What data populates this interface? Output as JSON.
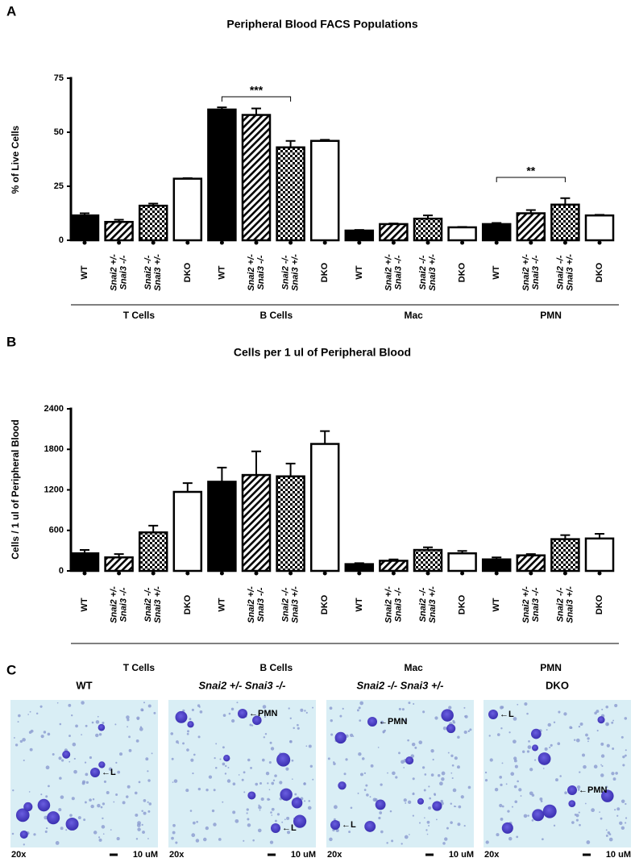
{
  "panel_labels": [
    "A",
    "B",
    "C"
  ],
  "chart_data": [
    {
      "type": "bar",
      "title": "Peripheral Blood FACS Populations",
      "y_label": "% of Live Cells",
      "categories": [
        "T Cells",
        "B Cells",
        "Mac",
        "PMN"
      ],
      "series": [
        {
          "name": "WT",
          "color": "#000000",
          "fill": "solid",
          "values": [
            11.5,
            60.5,
            4.5,
            7.5
          ],
          "errors": [
            1,
            1,
            0.3,
            0.5
          ]
        },
        {
          "name": "Snai2 +/- Snai3 -/-",
          "color": "#000000",
          "fill": "hatch",
          "values": [
            8.5,
            58,
            7.5,
            12.5
          ],
          "errors": [
            1,
            3,
            0.3,
            1.5
          ]
        },
        {
          "name": "Snai2 -/- Snai3 +/-",
          "color": "#000000",
          "fill": "checker",
          "values": [
            16,
            43,
            10,
            16.5
          ],
          "errors": [
            1,
            3,
            1.5,
            3
          ]
        },
        {
          "name": "DKO",
          "color": "#000000",
          "fill": "empty",
          "values": [
            28.5,
            46,
            6,
            11.5
          ],
          "errors": [
            0.3,
            0.5,
            0.2,
            0.3
          ]
        }
      ],
      "ylim": [
        0,
        75
      ],
      "yticks": [
        0,
        25,
        50,
        75
      ],
      "annotations": [
        {
          "text": "***"
        },
        {
          "text": "**"
        }
      ]
    },
    {
      "type": "bar",
      "title": "Cells per 1 ul of Peripheral Blood",
      "y_label": "Cells / 1 ul of Peripheral Blood",
      "categories": [
        "T Cells",
        "B Cells",
        "Mac",
        "PMN"
      ],
      "series": [
        {
          "name": "WT",
          "color": "#000000",
          "fill": "solid",
          "values": [
            260,
            1320,
            100,
            170
          ],
          "errors": [
            50,
            210,
            15,
            30
          ]
        },
        {
          "name": "Snai2 +/- Snai3 -/-",
          "color": "#000000",
          "fill": "hatch",
          "values": [
            200,
            1420,
            150,
            230
          ],
          "errors": [
            50,
            350,
            20,
            20
          ]
        },
        {
          "name": "Snai2 -/- Snai3 +/-",
          "color": "#000000",
          "fill": "checker",
          "values": [
            570,
            1400,
            310,
            470
          ],
          "errors": [
            100,
            190,
            40,
            60
          ]
        },
        {
          "name": "DKO",
          "color": "#000000",
          "fill": "empty",
          "values": [
            1170,
            1880,
            260,
            480
          ],
          "errors": [
            130,
            190,
            35,
            70
          ]
        }
      ],
      "ylim": [
        0,
        2400
      ],
      "yticks": [
        0,
        600,
        1200,
        1800,
        2400
      ],
      "annotations": []
    }
  ],
  "micrographs": {
    "magnification": "20x",
    "scale_bar": "10 uM",
    "panels": [
      {
        "title": "WT",
        "labels": [
          "←L"
        ]
      },
      {
        "title": "Snai2 +/- Snai3 -/-",
        "labels": [
          "←PMN",
          "←L"
        ]
      },
      {
        "title": "Snai2 -/- Snai3 +/-",
        "labels": [
          "←PMN",
          "←L"
        ]
      },
      {
        "title": "DKO",
        "labels": [
          "←L",
          "←PMN"
        ]
      }
    ]
  }
}
